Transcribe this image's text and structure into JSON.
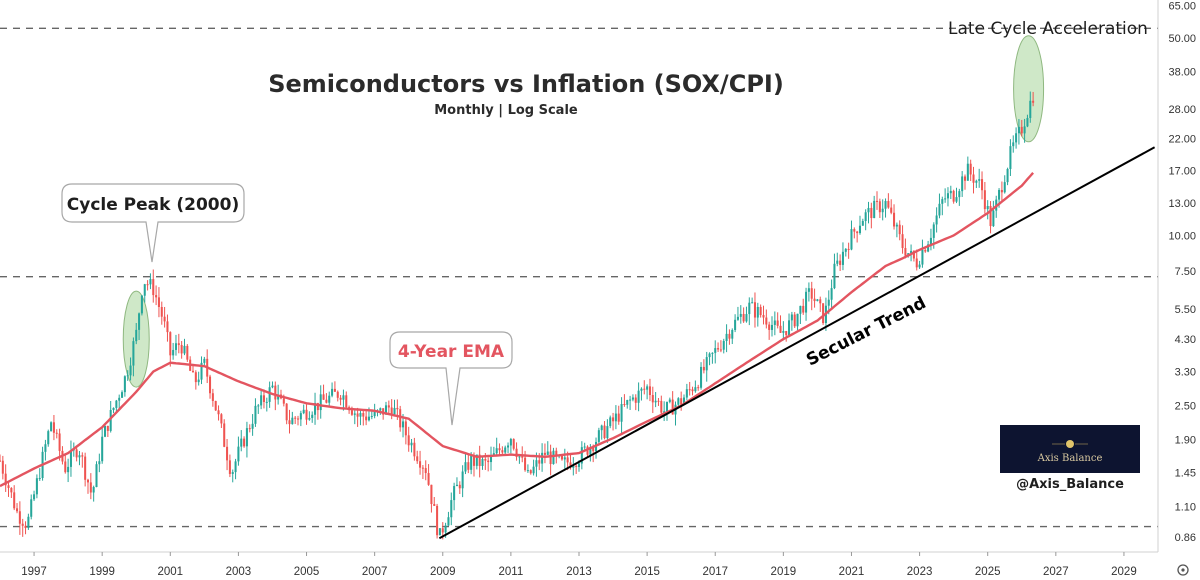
{
  "chart_data": {
    "type": "candlestick",
    "title": "Semiconductors vs Inflation (SOX/CPI)",
    "subtitle": "Monthly | Log Scale",
    "xlabel": "",
    "ylabel": "",
    "scale": "log",
    "xlim": [
      1996.0,
      2030.0
    ],
    "ylim": [
      0.76,
      68
    ],
    "grid": false,
    "x_ticks": [
      "1997",
      "1999",
      "2001",
      "2003",
      "2005",
      "2007",
      "2009",
      "2011",
      "2013",
      "2015",
      "2017",
      "2019",
      "2021",
      "2023",
      "2025",
      "2027",
      "2029"
    ],
    "y_ticks": [
      "65.00",
      "50.00",
      "38.00",
      "28.00",
      "22.00",
      "17.00",
      "13.00",
      "10.00",
      "7.50",
      "5.50",
      "4.30",
      "3.30",
      "2.50",
      "1.90",
      "1.45",
      "1.10",
      "0.86"
    ],
    "price_path": [
      [
        1996.0,
        1.6
      ],
      [
        1996.5,
        1.05
      ],
      [
        1996.8,
        0.95
      ],
      [
        1997.5,
        2.2
      ],
      [
        1997.9,
        1.5
      ],
      [
        1998.3,
        1.8
      ],
      [
        1998.7,
        1.2
      ],
      [
        1999.0,
        1.9
      ],
      [
        1999.3,
        2.4
      ],
      [
        1999.7,
        3.2
      ],
      [
        2000.0,
        4.5
      ],
      [
        2000.2,
        7.0
      ],
      [
        2000.5,
        6.5
      ],
      [
        2000.8,
        5.0
      ],
      [
        2001.0,
        3.8
      ],
      [
        2001.3,
        4.2
      ],
      [
        2001.7,
        3.0
      ],
      [
        2002.0,
        3.5
      ],
      [
        2002.4,
        2.3
      ],
      [
        2002.8,
        1.45
      ],
      [
        2003.0,
        1.7
      ],
      [
        2003.5,
        2.4
      ],
      [
        2004.0,
        2.9
      ],
      [
        2004.5,
        2.2
      ],
      [
        2005.0,
        2.4
      ],
      [
        2005.5,
        2.6
      ],
      [
        2006.0,
        2.8
      ],
      [
        2006.5,
        2.3
      ],
      [
        2007.0,
        2.3
      ],
      [
        2007.5,
        2.5
      ],
      [
        2008.0,
        1.9
      ],
      [
        2008.5,
        1.5
      ],
      [
        2008.9,
        0.85
      ],
      [
        2009.3,
        1.2
      ],
      [
        2009.8,
        1.6
      ],
      [
        2010.3,
        1.55
      ],
      [
        2011.0,
        1.95
      ],
      [
        2011.5,
        1.4
      ],
      [
        2012.0,
        1.7
      ],
      [
        2012.5,
        1.55
      ],
      [
        2013.0,
        1.65
      ],
      [
        2013.5,
        1.9
      ],
      [
        2014.0,
        2.2
      ],
      [
        2014.5,
        2.6
      ],
      [
        2015.0,
        2.9
      ],
      [
        2015.5,
        2.4
      ],
      [
        2016.0,
        2.6
      ],
      [
        2016.5,
        3.1
      ],
      [
        2017.0,
        3.9
      ],
      [
        2017.5,
        4.8
      ],
      [
        2018.0,
        5.6
      ],
      [
        2018.5,
        5.1
      ],
      [
        2018.9,
        4.5
      ],
      [
        2019.3,
        5.0
      ],
      [
        2019.8,
        6.3
      ],
      [
        2020.2,
        5.1
      ],
      [
        2020.5,
        7.5
      ],
      [
        2020.9,
        9.5
      ],
      [
        2021.3,
        11.5
      ],
      [
        2021.7,
        12.5
      ],
      [
        2022.0,
        13.0
      ],
      [
        2022.5,
        9.2
      ],
      [
        2022.9,
        8.0
      ],
      [
        2023.3,
        10.0
      ],
      [
        2023.7,
        13.5
      ],
      [
        2024.0,
        14.0
      ],
      [
        2024.4,
        17.0
      ],
      [
        2024.8,
        15.0
      ],
      [
        2025.1,
        11.0
      ],
      [
        2025.4,
        15.0
      ],
      [
        2025.7,
        20.0
      ],
      [
        2026.0,
        24.0
      ],
      [
        2026.35,
        32.0
      ]
    ],
    "ema_label": "4-Year EMA",
    "ema_color": "#e35560",
    "ema_path": [
      [
        1996.0,
        1.3
      ],
      [
        1997.0,
        1.5
      ],
      [
        1998.0,
        1.7
      ],
      [
        1999.0,
        2.1
      ],
      [
        2000.0,
        2.8
      ],
      [
        2000.5,
        3.3
      ],
      [
        2001.0,
        3.55
      ],
      [
        2002.0,
        3.45
      ],
      [
        2003.0,
        3.05
      ],
      [
        2004.0,
        2.75
      ],
      [
        2005.0,
        2.55
      ],
      [
        2006.0,
        2.45
      ],
      [
        2007.0,
        2.4
      ],
      [
        2008.0,
        2.25
      ],
      [
        2009.0,
        1.8
      ],
      [
        2010.0,
        1.65
      ],
      [
        2011.0,
        1.68
      ],
      [
        2012.0,
        1.65
      ],
      [
        2013.0,
        1.7
      ],
      [
        2014.0,
        1.92
      ],
      [
        2015.0,
        2.2
      ],
      [
        2016.0,
        2.5
      ],
      [
        2017.0,
        3.0
      ],
      [
        2018.0,
        3.6
      ],
      [
        2019.0,
        4.3
      ],
      [
        2020.0,
        5.0
      ],
      [
        2021.0,
        6.3
      ],
      [
        2022.0,
        7.8
      ],
      [
        2022.5,
        8.3
      ],
      [
        2023.0,
        8.9
      ],
      [
        2024.0,
        10.0
      ],
      [
        2025.0,
        12.0
      ],
      [
        2026.0,
        15.0
      ],
      [
        2026.4,
        17.0
      ]
    ],
    "trendline_label": "Secular Trend",
    "trendline": [
      [
        2008.9,
        0.85
      ],
      [
        2029.9,
        20.5
      ]
    ],
    "dashed_levels": [
      0.935,
      7.15,
      54.0
    ],
    "annotations": [
      {
        "text": "Cycle Peak (2000)",
        "x": 2000.2,
        "y": 7.6
      },
      {
        "text": "4-Year EMA",
        "x": 2009.0,
        "y": 2.05
      },
      {
        "text": "Late Cycle Acceleration",
        "x": 2026.2,
        "y": 55.0
      },
      {
        "text": "Secular Trend",
        "x": 2020.5,
        "y": 5.2
      }
    ],
    "highlight_ellipses": [
      {
        "cx": 2000.0,
        "cy": 4.3
      },
      {
        "cx": 2026.2,
        "cy": 33.0
      }
    ],
    "up_color": "#26a69a",
    "down_color": "#ef5350"
  },
  "branding": {
    "logo_text": "Axis Balance",
    "handle": "@Axis_Balance"
  }
}
